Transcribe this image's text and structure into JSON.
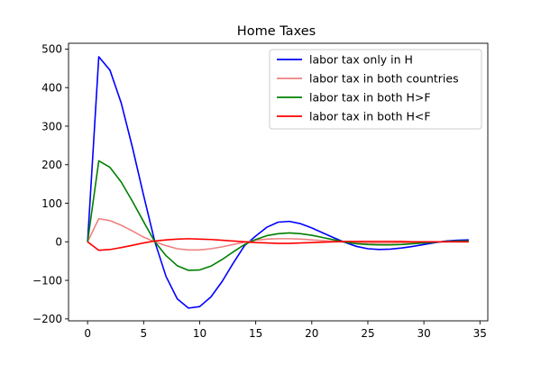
{
  "chart_data": {
    "type": "line",
    "title": "Home Taxes",
    "xlabel": "",
    "ylabel": "",
    "xlim": [
      -1.7,
      35.7
    ],
    "ylim": [
      -205,
      515
    ],
    "x_ticks": [
      0,
      5,
      10,
      15,
      20,
      25,
      30,
      35
    ],
    "y_ticks": [
      -200,
      -100,
      0,
      100,
      200,
      300,
      400,
      500
    ],
    "y_tick_labels": [
      "−200",
      "−100",
      "0",
      "100",
      "200",
      "300",
      "400",
      "500"
    ],
    "grid": false,
    "legend_position": "upper right",
    "series": [
      {
        "name": "labor tax only in H",
        "color": "#0000ff",
        "x": [
          0,
          1,
          2,
          3,
          4,
          5,
          6,
          7,
          8,
          9,
          10,
          11,
          12,
          13,
          14,
          15,
          16,
          17,
          18,
          19,
          20,
          21,
          22,
          23,
          24,
          25,
          26,
          27,
          28,
          29,
          30,
          31,
          32,
          33,
          34
        ],
        "values": [
          0,
          480,
          445,
          360,
          245,
          120,
          0,
          -90,
          -148,
          -172,
          -168,
          -143,
          -103,
          -55,
          -10,
          15,
          38,
          51,
          53,
          47,
          36,
          23,
          10,
          -2,
          -12,
          -18,
          -20,
          -19,
          -16,
          -12,
          -7,
          -2,
          2,
          4,
          5
        ]
      },
      {
        "name": "labor tax in both countries",
        "color": "#f08080",
        "x": [
          0,
          1,
          2,
          3,
          4,
          5,
          6,
          7,
          8,
          9,
          10,
          11,
          12,
          13,
          14,
          15,
          16,
          17,
          18,
          19,
          20,
          21,
          22,
          23,
          24,
          25,
          26,
          27,
          28,
          29,
          30,
          31,
          32,
          33,
          34
        ],
        "values": [
          0,
          60,
          55,
          43,
          28,
          12,
          0,
          -10,
          -18,
          -21,
          -21,
          -18,
          -13,
          -7,
          -1,
          4,
          7,
          8,
          8,
          7,
          5,
          3,
          1,
          -1,
          -2,
          -3,
          -3,
          -3,
          -2,
          -2,
          -1,
          0,
          0,
          1,
          1
        ]
      },
      {
        "name": "labor tax in both H>F",
        "color": "#008000",
        "x": [
          0,
          1,
          2,
          3,
          4,
          5,
          6,
          7,
          8,
          9,
          10,
          11,
          12,
          13,
          14,
          15,
          16,
          17,
          18,
          19,
          20,
          21,
          22,
          23,
          24,
          25,
          26,
          27,
          28,
          29,
          30,
          31,
          32,
          33,
          34
        ],
        "values": [
          0,
          210,
          193,
          155,
          105,
          52,
          0,
          -36,
          -62,
          -74,
          -73,
          -63,
          -46,
          -26,
          -7,
          6,
          16,
          21,
          23,
          21,
          17,
          11,
          5,
          -1,
          -5,
          -7,
          -8,
          -8,
          -7,
          -5,
          -3,
          -1,
          1,
          2,
          2
        ]
      },
      {
        "name": "labor tax in both H<F",
        "color": "#ff0000",
        "x": [
          0,
          1,
          2,
          3,
          4,
          5,
          6,
          7,
          8,
          9,
          10,
          11,
          12,
          13,
          14,
          15,
          16,
          17,
          18,
          19,
          20,
          21,
          22,
          23,
          24,
          25,
          26,
          27,
          28,
          29,
          30,
          31,
          32,
          33,
          34
        ],
        "values": [
          0,
          -22,
          -20,
          -15,
          -9,
          -3,
          2,
          5,
          7,
          8,
          7,
          6,
          4,
          2,
          0,
          -2,
          -3,
          -4,
          -4,
          -3,
          -2,
          -1,
          0,
          1,
          1,
          1,
          1,
          1,
          1,
          0,
          0,
          0,
          0,
          0,
          0
        ]
      }
    ]
  }
}
